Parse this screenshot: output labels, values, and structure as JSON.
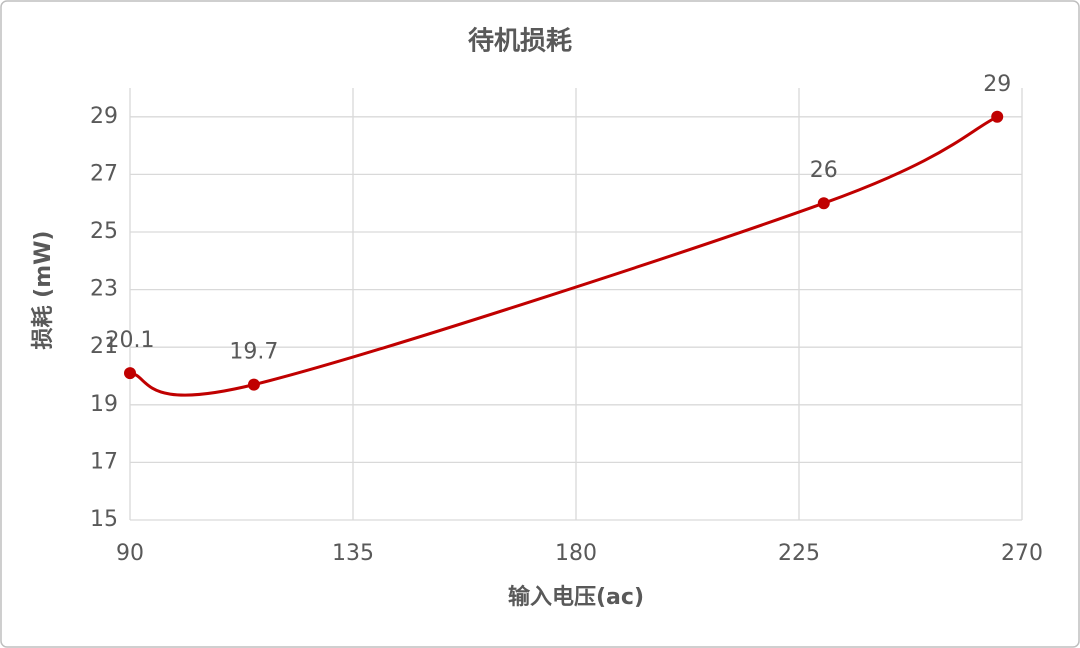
{
  "chart_data": {
    "type": "scatter",
    "title": "待机损耗",
    "x_label": "输入电压(ac)",
    "y_label": "损耗 (mW)",
    "series": [
      {
        "name": "待机损耗",
        "color": "#c00000",
        "x": [
          90,
          115,
          230,
          265
        ],
        "values": [
          20.1,
          19.7,
          26,
          29
        ]
      }
    ],
    "xlim": [
      90,
      270
    ],
    "xticks": [
      90,
      135,
      180,
      225,
      270
    ],
    "ylim": [
      15,
      30
    ],
    "yticks": [
      15,
      17,
      19,
      21,
      23,
      25,
      27,
      29
    ],
    "grid": true,
    "smooth": true,
    "data_labels": true
  }
}
